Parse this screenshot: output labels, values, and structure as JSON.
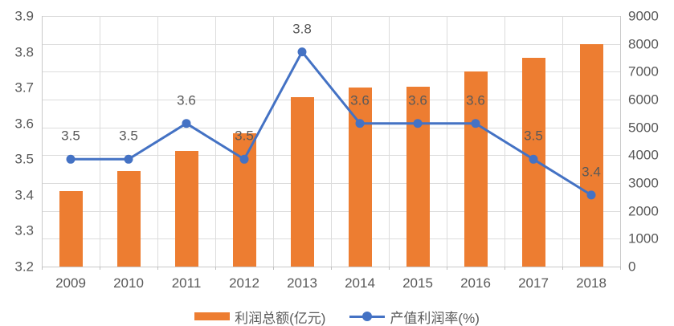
{
  "chart_data": {
    "type": "bar",
    "subtype": "combo-bar-line-dual-axis",
    "categories": [
      "2009",
      "2010",
      "2011",
      "2012",
      "2013",
      "2014",
      "2015",
      "2016",
      "2017",
      "2018"
    ],
    "series": [
      {
        "name": "利润总额(亿元)",
        "kind": "bar",
        "axis": "right",
        "color": "#ED7D31",
        "values": [
          2720,
          3440,
          4160,
          4800,
          6100,
          6430,
          6470,
          7000,
          7510,
          8000
        ]
      },
      {
        "name": "产值利润率(%)",
        "kind": "line",
        "axis": "left",
        "color": "#4472C4",
        "values": [
          3.5,
          3.5,
          3.6,
          3.5,
          3.8,
          3.6,
          3.6,
          3.6,
          3.5,
          3.4
        ],
        "point_labels": [
          "3.5",
          "3.5",
          "3.6",
          "3.5",
          "3.8",
          "3.6",
          "3.6",
          "3.6",
          "3.5",
          "3.4"
        ]
      }
    ],
    "left_axis": {
      "min": 3.2,
      "max": 3.9,
      "step": 0.1,
      "ticks": [
        "3.9",
        "3.8",
        "3.7",
        "3.6",
        "3.5",
        "3.4",
        "3.3",
        "3.2"
      ]
    },
    "right_axis": {
      "min": 0,
      "max": 9000,
      "step": 1000,
      "ticks": [
        "9000",
        "8000",
        "7000",
        "6000",
        "5000",
        "4000",
        "3000",
        "2000",
        "1000",
        "0"
      ]
    },
    "grid": true,
    "legend_position": "bottom",
    "colors": {
      "bar": "#ED7D31",
      "line": "#4472C4",
      "text": "#595959",
      "gridline": "#dcdcdc",
      "axisline": "#c9c9c9",
      "background": "#ffffff"
    }
  }
}
